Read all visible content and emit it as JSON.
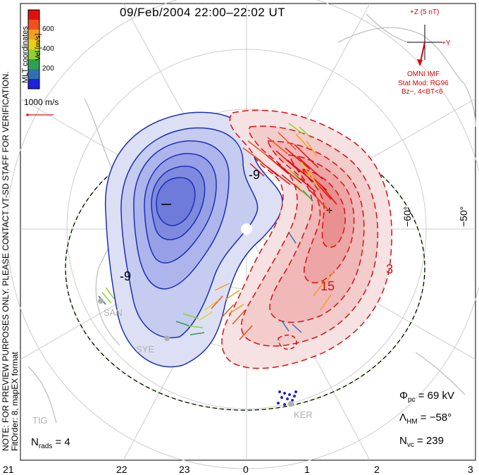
{
  "title": "09/Feb/2004 22:00–22:02 UT",
  "note_line1": "NOTE: FOR PREVIEW PURPOSES ONLY. PLEASE CONTACT VT-SD STAFF FOR VERIFICATION.",
  "note_line2": "FitOrder: 8, mapEX format",
  "coords_label": "MLT coordinates",
  "colorbar": {
    "unit": "Vel [m/s]",
    "ticks": [
      "600",
      "400",
      "200"
    ],
    "colors": [
      "#e01010",
      "#f05020",
      "#f0a020",
      "#e8d020",
      "#90d030",
      "#30a050",
      "#3070b0",
      "#2020e0"
    ]
  },
  "reference_vector": "1000 m/s",
  "imf": {
    "z_label": "+Z (5 nT)",
    "y_label": "+Y",
    "source": "OMNI IMF",
    "stat_mod": "Stat Mod: RG96",
    "condition": "Bz−, 4<BT<6"
  },
  "mlt_ticks": [
    "21",
    "22",
    "23",
    "0",
    "1",
    "2",
    "3"
  ],
  "lat_labels": [
    "−60°",
    "−50°"
  ],
  "contour_labels": [
    "-9",
    "-9",
    "3",
    "15"
  ],
  "sites": [
    "SAN",
    "SYE",
    "KER",
    "TIG"
  ],
  "stats": {
    "phi_pc_label": "Φ",
    "phi_pc_sub": "pc",
    "phi_pc_value": " = 69 kV",
    "lambda_label": "Λ",
    "lambda_sub": "HM",
    "lambda_value": " = −58°",
    "nvc_label": "N",
    "nvc_sub": "vc",
    "nvc_value": " = 239",
    "nrads_label": "N",
    "nrads_sub": "rads",
    "nrads_value": " = 4"
  }
}
